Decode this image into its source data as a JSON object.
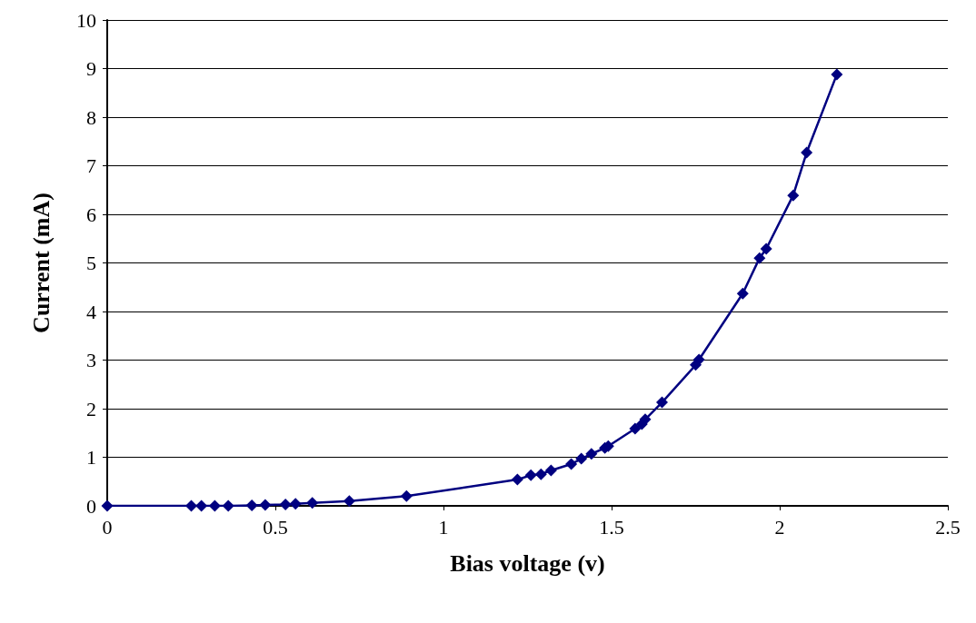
{
  "chart_data": {
    "type": "line",
    "xlabel": "Bias voltage (v)",
    "ylabel": "Current (mA)",
    "x": [
      0,
      0.25,
      0.28,
      0.32,
      0.36,
      0.43,
      0.47,
      0.53,
      0.56,
      0.61,
      0.72,
      0.89,
      1.22,
      1.26,
      1.29,
      1.32,
      1.38,
      1.41,
      1.44,
      1.48,
      1.49,
      1.57,
      1.59,
      1.6,
      1.65,
      1.75,
      1.76,
      1.89,
      1.94,
      1.96,
      2.04,
      2.08,
      2.17
    ],
    "series": [
      {
        "color": "#000080",
        "values": [
          0,
          0,
          0,
          0,
          0,
          0.01,
          0.02,
          0.03,
          0.04,
          0.06,
          0.1,
          0.2,
          0.54,
          0.63,
          0.65,
          0.73,
          0.86,
          0.97,
          1.07,
          1.19,
          1.23,
          1.59,
          1.68,
          1.78,
          2.13,
          2.9,
          3.01,
          4.37,
          5.1,
          5.29,
          6.39,
          7.27,
          8.88
        ]
      }
    ],
    "xlim": [
      0,
      2.5
    ],
    "xticks": [
      0,
      0.5,
      1,
      1.5,
      2,
      2.5
    ],
    "ylim": [
      0,
      10
    ],
    "yticks": [
      0,
      1,
      2,
      3,
      4,
      5,
      6,
      7,
      8,
      9,
      10
    ],
    "grid": "y",
    "marker": "diamond",
    "line_style": "solid"
  }
}
